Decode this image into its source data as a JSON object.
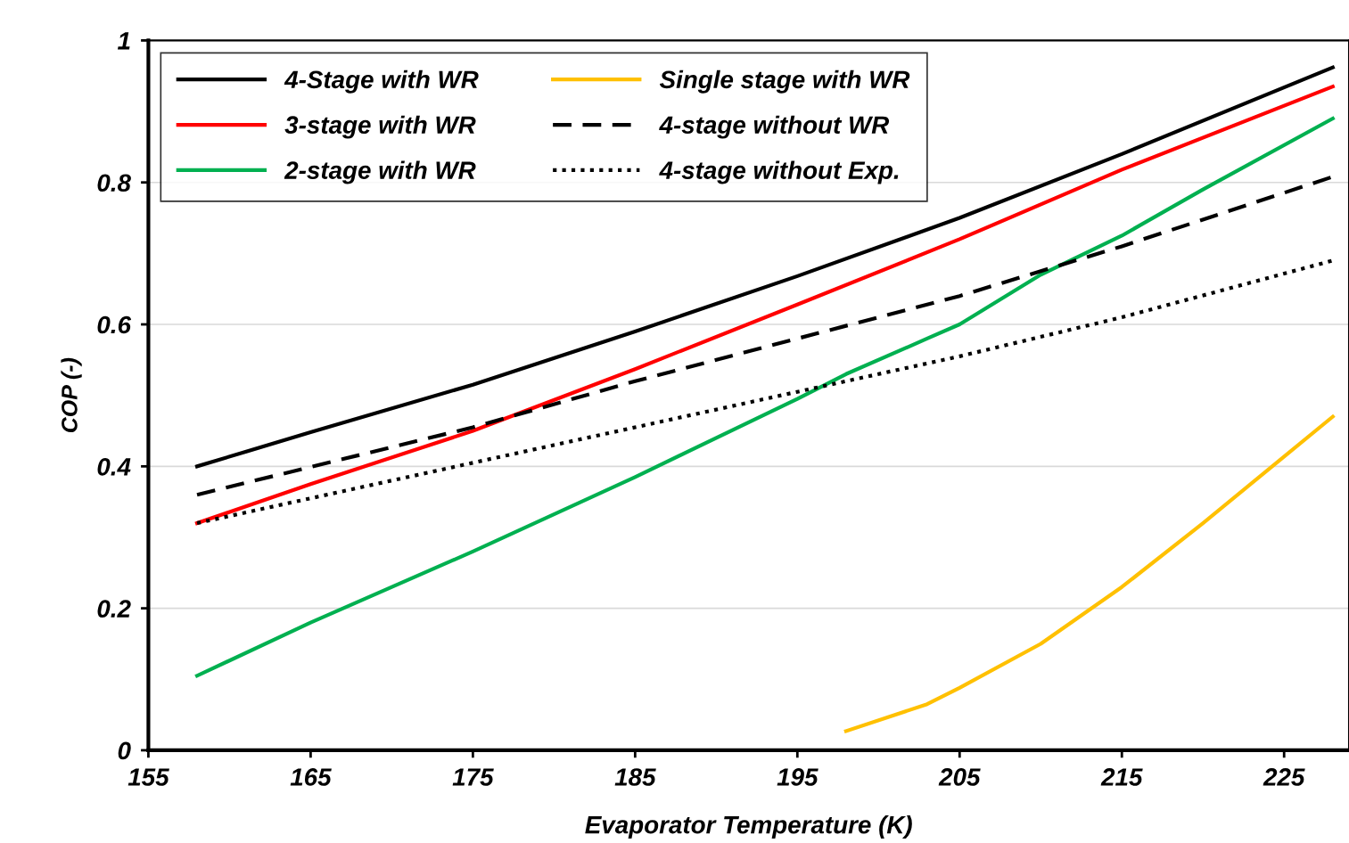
{
  "chart_data": {
    "type": "line",
    "xlabel": "Evaporator Temperature (K)",
    "ylabel": "COP (-)",
    "xlim": [
      155,
      229
    ],
    "ylim": [
      0,
      1
    ],
    "xticks": [
      155,
      165,
      175,
      185,
      195,
      205,
      215,
      225
    ],
    "yticks": [
      0,
      {
        "value": 0.2,
        "label": "0.2"
      },
      {
        "value": 0.4,
        "label": "0.4"
      },
      {
        "value": 0.6,
        "label": "0.6"
      },
      {
        "value": 0.8,
        "label": "0.8"
      },
      1
    ],
    "grid": "y",
    "legend": "top left",
    "marker": "none",
    "series": [
      {
        "name": "4-Stage with WR",
        "color": "#000000",
        "line_style": "solid",
        "x": [
          158,
          165,
          175,
          185,
          195,
          205,
          215,
          228
        ],
        "values": [
          0.4,
          0.448,
          0.515,
          0.59,
          0.668,
          0.75,
          0.84,
          0.962
        ]
      },
      {
        "name": "3-stage with WR",
        "color": "#ff0000",
        "line_style": "solid",
        "x": [
          158,
          165,
          175,
          185,
          195,
          205,
          215,
          228
        ],
        "values": [
          0.32,
          0.375,
          0.45,
          0.537,
          0.628,
          0.72,
          0.818,
          0.935
        ]
      },
      {
        "name": "2-stage with WR",
        "color": "#00b050",
        "line_style": "solid",
        "x": [
          158,
          165,
          175,
          185,
          195,
          198,
          203,
          205,
          210,
          215,
          220,
          228
        ],
        "values": [
          0.105,
          0.18,
          0.28,
          0.385,
          0.495,
          0.53,
          0.58,
          0.6,
          0.67,
          0.725,
          0.79,
          0.89
        ]
      },
      {
        "name": "Single stage with WR",
        "color": "#ffc000",
        "line_style": "solid",
        "x": [
          198,
          203,
          205,
          210,
          215,
          220,
          228
        ],
        "values": [
          0.027,
          0.065,
          0.088,
          0.15,
          0.23,
          0.32,
          0.47
        ]
      },
      {
        "name": "4-stage without WR",
        "color": "#000000",
        "line_style": "dashed",
        "x": [
          158,
          175,
          185,
          195,
          205,
          215,
          228
        ],
        "values": [
          0.36,
          0.455,
          0.52,
          0.58,
          0.64,
          0.71,
          0.808
        ]
      },
      {
        "name": "4-stage without Exp.",
        "color": "#000000",
        "line_style": "dotted",
        "x": [
          158,
          175,
          185,
          195,
          205,
          215,
          228
        ],
        "values": [
          0.32,
          0.405,
          0.455,
          0.505,
          0.555,
          0.61,
          0.69
        ]
      }
    ]
  }
}
